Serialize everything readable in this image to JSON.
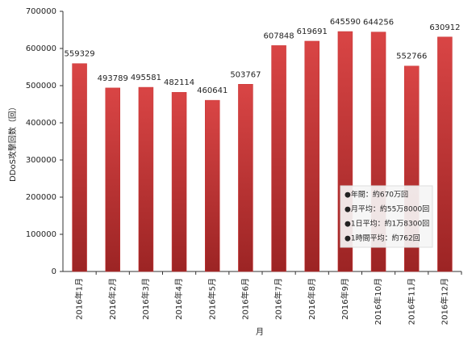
{
  "chart_data": {
    "type": "bar",
    "categories": [
      "2016年1月",
      "2016年2月",
      "2016年3月",
      "2016年4月",
      "2016年5月",
      "2016年6月",
      "2016年7月",
      "2016年8月",
      "2016年9月",
      "2016年10月",
      "2016年11月",
      "2016年12月"
    ],
    "values": [
      559329,
      493789,
      495581,
      482114,
      460641,
      503767,
      607848,
      619691,
      645590,
      644256,
      552766,
      630912
    ],
    "color": "#c83232",
    "ylim": [
      0,
      700000
    ],
    "yticks": [
      0,
      100000,
      200000,
      300000,
      400000,
      500000,
      600000,
      700000
    ],
    "grid": false,
    "x_label": "月",
    "y_label": "DDoS攻撃回数（回）",
    "annotations": [
      "●年間：約670万回",
      "●月平均：約55万8000回",
      "●1日平均：約1万8300回",
      "●1時間平均：約762回"
    ]
  }
}
